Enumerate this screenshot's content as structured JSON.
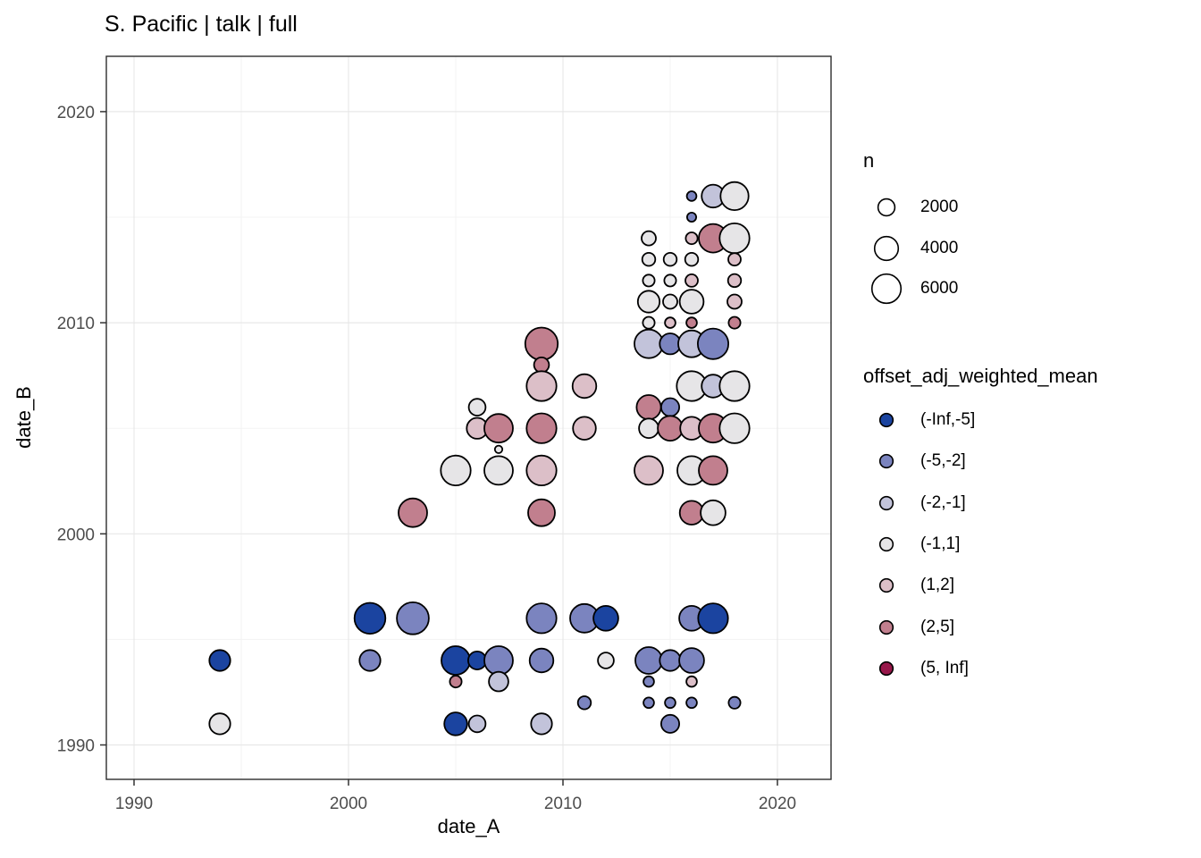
{
  "chart_data": {
    "type": "scatter",
    "title": "S. Pacific | talk | full",
    "xlabel": "date_A",
    "ylabel": "date_B",
    "xlim": [
      1988.7,
      2022.5
    ],
    "ylim": [
      1988.4,
      2022.6
    ],
    "x_ticks": [
      1990,
      2000,
      2010,
      2020
    ],
    "y_ticks": [
      1990,
      2000,
      2010,
      2020
    ],
    "minor_gridlines": [
      1995,
      2005,
      2015
    ],
    "grid": true,
    "legend_position": "right",
    "size_legend": {
      "title": "n",
      "values": [
        2000,
        4000,
        6000
      ]
    },
    "color_legend": {
      "title": "offset_adj_weighted_mean",
      "categories": [
        {
          "label": "(-Inf,-5]",
          "color": "#1b44a0"
        },
        {
          "label": "(-5,-2]",
          "color": "#7b84bf"
        },
        {
          "label": "(-2,-1]",
          "color": "#c2c3da"
        },
        {
          "label": "(-1,1]",
          "color": "#e6e5e7"
        },
        {
          "label": "(1,2]",
          "color": "#dcbfc8"
        },
        {
          "label": "(2,5]",
          "color": "#c17f8e"
        },
        {
          "label": "(5, Inf]",
          "color": "#97174a"
        }
      ]
    },
    "point_stroke_color": "#000000",
    "points": [
      {
        "x": 2016,
        "y": 2016,
        "n": 650,
        "bin": "(-5,-2]"
      },
      {
        "x": 2017,
        "y": 2016,
        "n": 3700,
        "bin": "(-2,-1]"
      },
      {
        "x": 2018,
        "y": 2016,
        "n": 5600,
        "bin": "(-1,1]"
      },
      {
        "x": 2016,
        "y": 2015,
        "n": 600,
        "bin": "(-5,-2]"
      },
      {
        "x": 2014,
        "y": 2014,
        "n": 1450,
        "bin": "(-1,1]"
      },
      {
        "x": 2016,
        "y": 2014,
        "n": 1000,
        "bin": "(1,2]"
      },
      {
        "x": 2017,
        "y": 2014,
        "n": 5800,
        "bin": "(2,5]"
      },
      {
        "x": 2018,
        "y": 2014,
        "n": 6300,
        "bin": "(-1,1]"
      },
      {
        "x": 2014,
        "y": 2013,
        "n": 1200,
        "bin": "(-1,1]"
      },
      {
        "x": 2015,
        "y": 2013,
        "n": 1200,
        "bin": "(-1,1]"
      },
      {
        "x": 2016,
        "y": 2013,
        "n": 1200,
        "bin": "(-1,1]"
      },
      {
        "x": 2018,
        "y": 2013,
        "n": 1100,
        "bin": "(1,2]"
      },
      {
        "x": 2014,
        "y": 2012,
        "n": 1000,
        "bin": "(-1,1]"
      },
      {
        "x": 2015,
        "y": 2012,
        "n": 1000,
        "bin": "(-1,1]"
      },
      {
        "x": 2016,
        "y": 2012,
        "n": 1100,
        "bin": "(1,2]"
      },
      {
        "x": 2018,
        "y": 2012,
        "n": 1200,
        "bin": "(1,2]"
      },
      {
        "x": 2014,
        "y": 2011,
        "n": 3400,
        "bin": "(-1,1]"
      },
      {
        "x": 2015,
        "y": 2011,
        "n": 1450,
        "bin": "(-1,1]"
      },
      {
        "x": 2016,
        "y": 2011,
        "n": 4100,
        "bin": "(-1,1]"
      },
      {
        "x": 2018,
        "y": 2011,
        "n": 1450,
        "bin": "(1,2]"
      },
      {
        "x": 2014,
        "y": 2010,
        "n": 1000,
        "bin": "(-1,1]"
      },
      {
        "x": 2015,
        "y": 2010,
        "n": 800,
        "bin": "(1,2]"
      },
      {
        "x": 2016,
        "y": 2010,
        "n": 800,
        "bin": "(2,5]"
      },
      {
        "x": 2018,
        "y": 2010,
        "n": 1000,
        "bin": "(2,5]"
      },
      {
        "x": 2014,
        "y": 2009,
        "n": 5800,
        "bin": "(-2,-1]"
      },
      {
        "x": 2015,
        "y": 2009,
        "n": 3100,
        "bin": "(-5,-2]"
      },
      {
        "x": 2016,
        "y": 2009,
        "n": 5100,
        "bin": "(-2,-1]"
      },
      {
        "x": 2017,
        "y": 2009,
        "n": 6600,
        "bin": "(-5,-2]"
      },
      {
        "x": 2016,
        "y": 2007,
        "n": 6300,
        "bin": "(-1,1]"
      },
      {
        "x": 2017,
        "y": 2007,
        "n": 3700,
        "bin": "(-2,-1]"
      },
      {
        "x": 2018,
        "y": 2007,
        "n": 6300,
        "bin": "(-1,1]"
      },
      {
        "x": 2014,
        "y": 2006,
        "n": 4200,
        "bin": "(2,5]"
      },
      {
        "x": 2015,
        "y": 2006,
        "n": 2300,
        "bin": "(-5,-2]"
      },
      {
        "x": 2014,
        "y": 2005,
        "n": 2700,
        "bin": "(-1,1]"
      },
      {
        "x": 2015,
        "y": 2005,
        "n": 4400,
        "bin": "(2,5]"
      },
      {
        "x": 2016,
        "y": 2005,
        "n": 3700,
        "bin": "(1,2]"
      },
      {
        "x": 2017,
        "y": 2005,
        "n": 5800,
        "bin": "(2,5]"
      },
      {
        "x": 2018,
        "y": 2005,
        "n": 6300,
        "bin": "(-1,1]"
      },
      {
        "x": 2014,
        "y": 2003,
        "n": 5800,
        "bin": "(1,2]"
      },
      {
        "x": 2016,
        "y": 2003,
        "n": 5800,
        "bin": "(-1,1]"
      },
      {
        "x": 2017,
        "y": 2003,
        "n": 5800,
        "bin": "(2,5]"
      },
      {
        "x": 2016,
        "y": 2001,
        "n": 4000,
        "bin": "(2,5]"
      },
      {
        "x": 2017,
        "y": 2001,
        "n": 4400,
        "bin": "(-1,1]"
      },
      {
        "x": 2009,
        "y": 2009,
        "n": 7500,
        "bin": "(2,5]"
      },
      {
        "x": 2009,
        "y": 2008,
        "n": 1600,
        "bin": "(2,5]"
      },
      {
        "x": 2009,
        "y": 2007,
        "n": 6300,
        "bin": "(1,2]"
      },
      {
        "x": 2011,
        "y": 2007,
        "n": 4000,
        "bin": "(1,2]"
      },
      {
        "x": 2006,
        "y": 2006,
        "n": 2000,
        "bin": "(-1,1]"
      },
      {
        "x": 2006,
        "y": 2005,
        "n": 3100,
        "bin": "(1,2]"
      },
      {
        "x": 2007,
        "y": 2005,
        "n": 5800,
        "bin": "(2,5]"
      },
      {
        "x": 2009,
        "y": 2005,
        "n": 6300,
        "bin": "(2,5]"
      },
      {
        "x": 2011,
        "y": 2005,
        "n": 3700,
        "bin": "(1,2]"
      },
      {
        "x": 2007,
        "y": 2004,
        "n": 400,
        "bin": "(-1,1]"
      },
      {
        "x": 2005,
        "y": 2003,
        "n": 6300,
        "bin": "(-1,1]"
      },
      {
        "x": 2007,
        "y": 2003,
        "n": 5800,
        "bin": "(-1,1]"
      },
      {
        "x": 2009,
        "y": 2003,
        "n": 6300,
        "bin": "(1,2]"
      },
      {
        "x": 2003,
        "y": 2001,
        "n": 5800,
        "bin": "(2,5]"
      },
      {
        "x": 2009,
        "y": 2001,
        "n": 5100,
        "bin": "(2,5]"
      },
      {
        "x": 1994,
        "y": 1994,
        "n": 3100,
        "bin": "(-Inf,-5]"
      },
      {
        "x": 1994,
        "y": 1991,
        "n": 3100,
        "bin": "(-1,1]"
      },
      {
        "x": 2001,
        "y": 1996,
        "n": 6800,
        "bin": "(-Inf,-5]"
      },
      {
        "x": 2003,
        "y": 1996,
        "n": 7300,
        "bin": "(-5,-2]"
      },
      {
        "x": 2009,
        "y": 1996,
        "n": 6300,
        "bin": "(-5,-2]"
      },
      {
        "x": 2011,
        "y": 1996,
        "n": 5800,
        "bin": "(-5,-2]"
      },
      {
        "x": 2012,
        "y": 1996,
        "n": 4400,
        "bin": "(-Inf,-5]"
      },
      {
        "x": 2016,
        "y": 1996,
        "n": 4400,
        "bin": "(-5,-2]"
      },
      {
        "x": 2017,
        "y": 1996,
        "n": 6300,
        "bin": "(-Inf,-5]"
      },
      {
        "x": 2001,
        "y": 1994,
        "n": 3100,
        "bin": "(-5,-2]"
      },
      {
        "x": 2005,
        "y": 1994,
        "n": 5800,
        "bin": "(-Inf,-5]"
      },
      {
        "x": 2006,
        "y": 1994,
        "n": 2300,
        "bin": "(-Inf,-5]"
      },
      {
        "x": 2007,
        "y": 1994,
        "n": 5800,
        "bin": "(-5,-2]"
      },
      {
        "x": 2009,
        "y": 1994,
        "n": 4000,
        "bin": "(-5,-2]"
      },
      {
        "x": 2012,
        "y": 1994,
        "n": 1800,
        "bin": "(-1,1]"
      },
      {
        "x": 2014,
        "y": 1994,
        "n": 5100,
        "bin": "(-5,-2]"
      },
      {
        "x": 2015,
        "y": 1994,
        "n": 3100,
        "bin": "(-5,-2]"
      },
      {
        "x": 2016,
        "y": 1994,
        "n": 4400,
        "bin": "(-5,-2]"
      },
      {
        "x": 2005,
        "y": 1993,
        "n": 1000,
        "bin": "(2,5]"
      },
      {
        "x": 2007,
        "y": 1993,
        "n": 2700,
        "bin": "(-2,-1]"
      },
      {
        "x": 2014,
        "y": 1993,
        "n": 800,
        "bin": "(-5,-2]"
      },
      {
        "x": 2016,
        "y": 1993,
        "n": 800,
        "bin": "(1,2]"
      },
      {
        "x": 2011,
        "y": 1992,
        "n": 1200,
        "bin": "(-5,-2]"
      },
      {
        "x": 2014,
        "y": 1992,
        "n": 800,
        "bin": "(-5,-2]"
      },
      {
        "x": 2015,
        "y": 1992,
        "n": 800,
        "bin": "(-5,-2]"
      },
      {
        "x": 2016,
        "y": 1992,
        "n": 800,
        "bin": "(-5,-2]"
      },
      {
        "x": 2018,
        "y": 1992,
        "n": 1000,
        "bin": "(-5,-2]"
      },
      {
        "x": 2005,
        "y": 1991,
        "n": 3700,
        "bin": "(-Inf,-5]"
      },
      {
        "x": 2006,
        "y": 1991,
        "n": 2000,
        "bin": "(-2,-1]"
      },
      {
        "x": 2009,
        "y": 1991,
        "n": 3100,
        "bin": "(-2,-1]"
      },
      {
        "x": 2015,
        "y": 1991,
        "n": 2300,
        "bin": "(-5,-2]"
      }
    ]
  }
}
